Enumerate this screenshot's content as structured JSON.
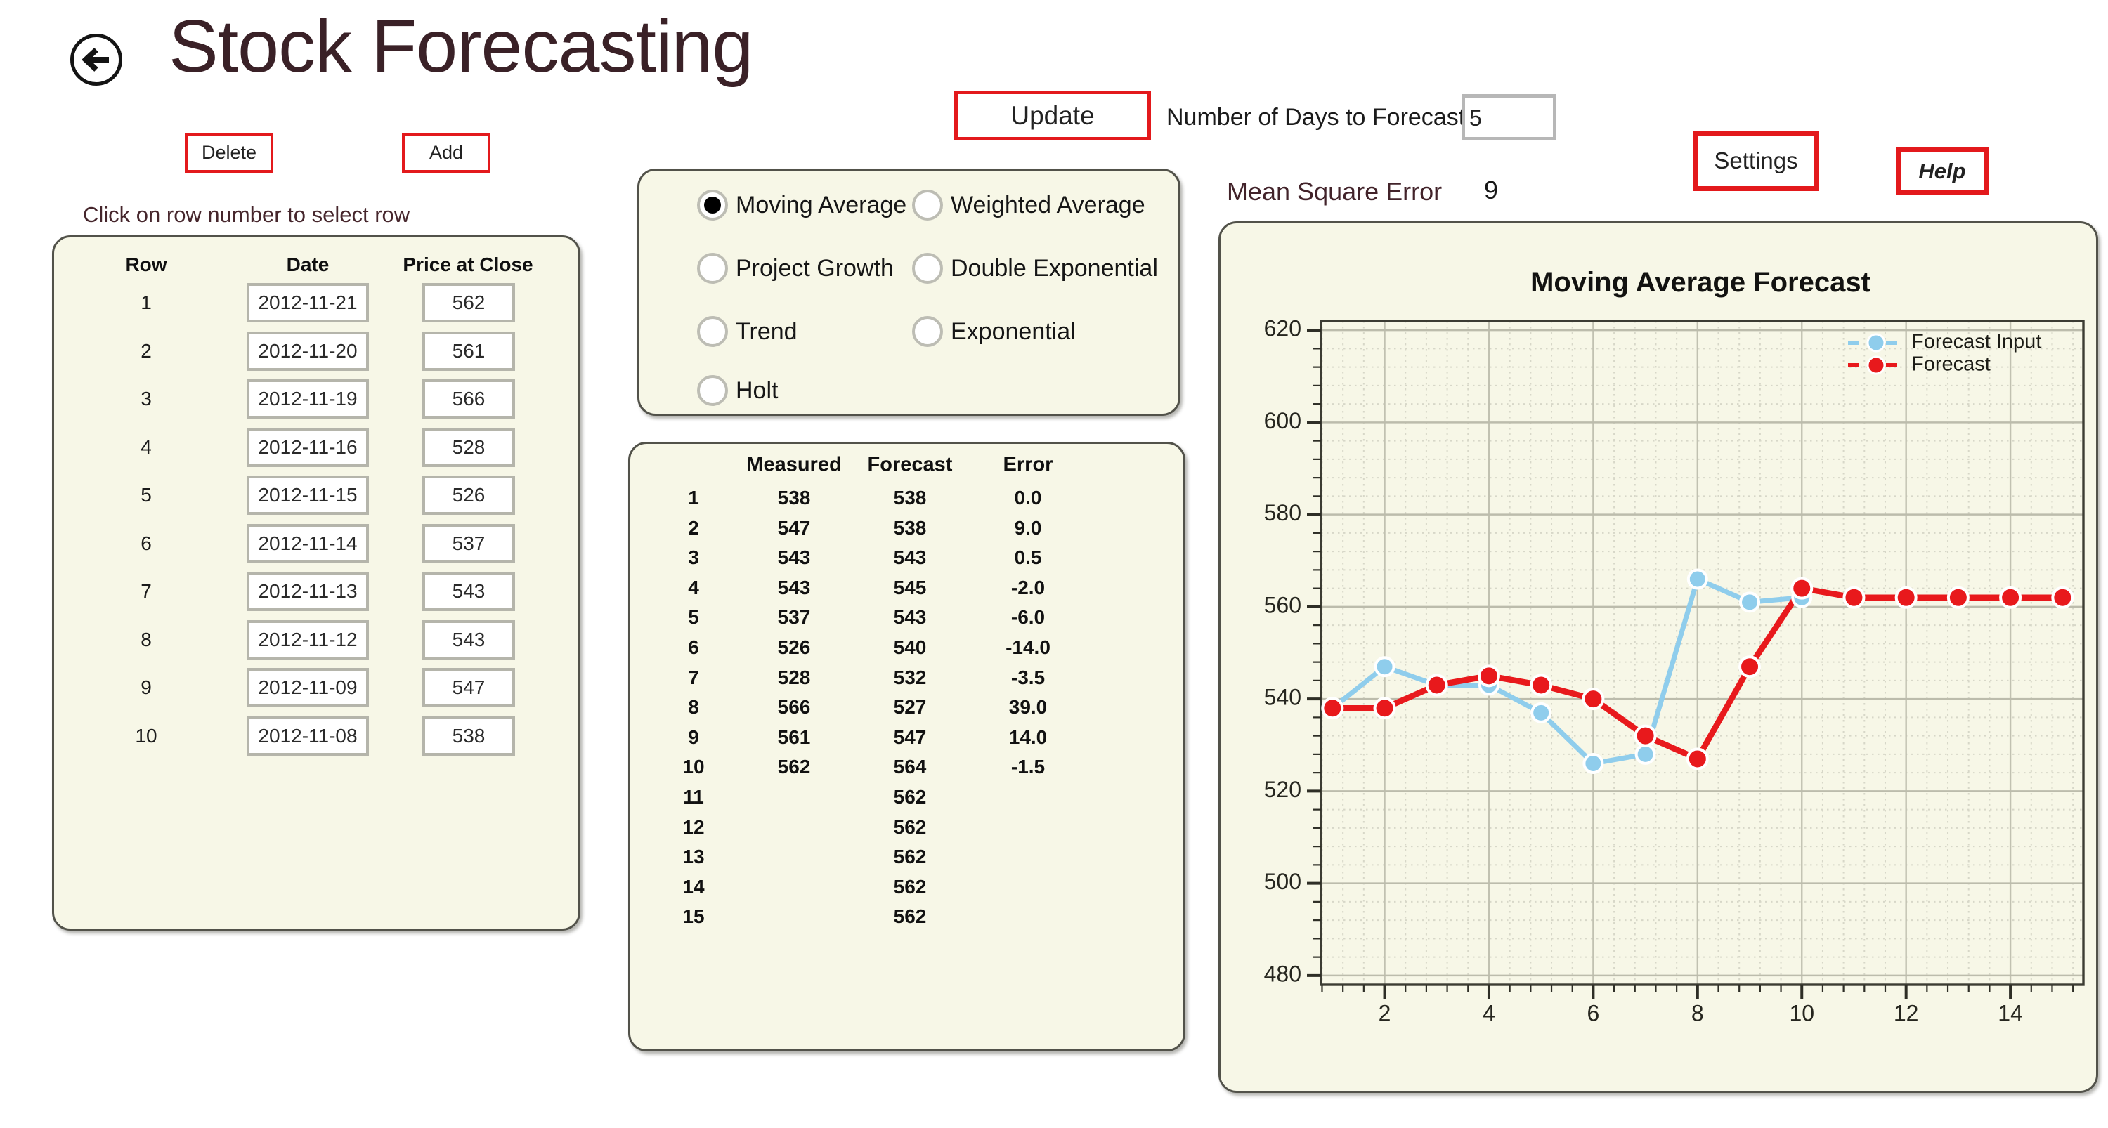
{
  "app": {
    "title": "Stock Forecasting"
  },
  "toolbar": {
    "delete_label": "Delete",
    "add_label": "Add",
    "update_label": "Update",
    "settings_label": "Settings",
    "help_label": "Help",
    "days_label": "Number of Days to Forecast",
    "days_value": "5",
    "mse_label": "Mean Square Error",
    "mse_value": "9"
  },
  "data_table": {
    "hint": "Click on row number to select row",
    "headers": [
      "Row",
      "Date",
      "Price at Close"
    ],
    "rows": [
      {
        "row": "1",
        "date": "2012-11-21",
        "price": "562"
      },
      {
        "row": "2",
        "date": "2012-11-20",
        "price": "561"
      },
      {
        "row": "3",
        "date": "2012-11-19",
        "price": "566"
      },
      {
        "row": "4",
        "date": "2012-11-16",
        "price": "528"
      },
      {
        "row": "5",
        "date": "2012-11-15",
        "price": "526"
      },
      {
        "row": "6",
        "date": "2012-11-14",
        "price": "537"
      },
      {
        "row": "7",
        "date": "2012-11-13",
        "price": "543"
      },
      {
        "row": "8",
        "date": "2012-11-12",
        "price": "543"
      },
      {
        "row": "9",
        "date": "2012-11-09",
        "price": "547"
      },
      {
        "row": "10",
        "date": "2012-11-08",
        "price": "538"
      }
    ]
  },
  "methods": {
    "options": [
      {
        "label": "Moving Average",
        "selected": true
      },
      {
        "label": "Weighted Average",
        "selected": false
      },
      {
        "label": "Project Growth",
        "selected": false
      },
      {
        "label": "Double Exponential",
        "selected": false
      },
      {
        "label": "Trend",
        "selected": false
      },
      {
        "label": "Exponential",
        "selected": false
      },
      {
        "label": "Holt",
        "selected": false
      }
    ]
  },
  "forecast_table": {
    "headers": [
      "Measured",
      "Forecast",
      "Error"
    ],
    "rows": [
      {
        "idx": "1",
        "measured": "538",
        "forecast": "538",
        "error": "0.0"
      },
      {
        "idx": "2",
        "measured": "547",
        "forecast": "538",
        "error": "9.0"
      },
      {
        "idx": "3",
        "measured": "543",
        "forecast": "543",
        "error": "0.5"
      },
      {
        "idx": "4",
        "measured": "543",
        "forecast": "545",
        "error": "-2.0"
      },
      {
        "idx": "5",
        "measured": "537",
        "forecast": "543",
        "error": "-6.0"
      },
      {
        "idx": "6",
        "measured": "526",
        "forecast": "540",
        "error": "-14.0"
      },
      {
        "idx": "7",
        "measured": "528",
        "forecast": "532",
        "error": "-3.5"
      },
      {
        "idx": "8",
        "measured": "566",
        "forecast": "527",
        "error": "39.0"
      },
      {
        "idx": "9",
        "measured": "561",
        "forecast": "547",
        "error": "14.0"
      },
      {
        "idx": "10",
        "measured": "562",
        "forecast": "564",
        "error": "-1.5"
      },
      {
        "idx": "11",
        "measured": "",
        "forecast": "562",
        "error": ""
      },
      {
        "idx": "12",
        "measured": "",
        "forecast": "562",
        "error": ""
      },
      {
        "idx": "13",
        "measured": "",
        "forecast": "562",
        "error": ""
      },
      {
        "idx": "14",
        "measured": "",
        "forecast": "562",
        "error": ""
      },
      {
        "idx": "15",
        "measured": "",
        "forecast": "562",
        "error": ""
      }
    ]
  },
  "chart_data": {
    "type": "line",
    "title": "Moving Average Forecast",
    "xlabel": "",
    "ylabel": "",
    "xlim": [
      0.78,
      15.4
    ],
    "ylim": [
      478,
      622
    ],
    "xticks": [
      2,
      4,
      6,
      8,
      10,
      12,
      14
    ],
    "yticks": [
      480,
      500,
      520,
      540,
      560,
      580,
      600,
      620
    ],
    "x_minor_step": 0.4,
    "y_minor_step": 4,
    "grid": true,
    "legend_position": "top-right",
    "series": [
      {
        "name": "Forecast Input",
        "color": "#8fcdec",
        "x": [
          1,
          2,
          3,
          4,
          5,
          6,
          7,
          8,
          9,
          10
        ],
        "values": [
          538,
          547,
          543,
          543,
          537,
          526,
          528,
          566,
          561,
          562
        ]
      },
      {
        "name": "Forecast",
        "color": "#e8191c",
        "x": [
          1,
          2,
          3,
          4,
          5,
          6,
          7,
          8,
          9,
          10,
          11,
          12,
          13,
          14,
          15
        ],
        "values": [
          538,
          538,
          543,
          545,
          543,
          540,
          532,
          527,
          547,
          564,
          562,
          562,
          562,
          562,
          562
        ]
      }
    ]
  }
}
